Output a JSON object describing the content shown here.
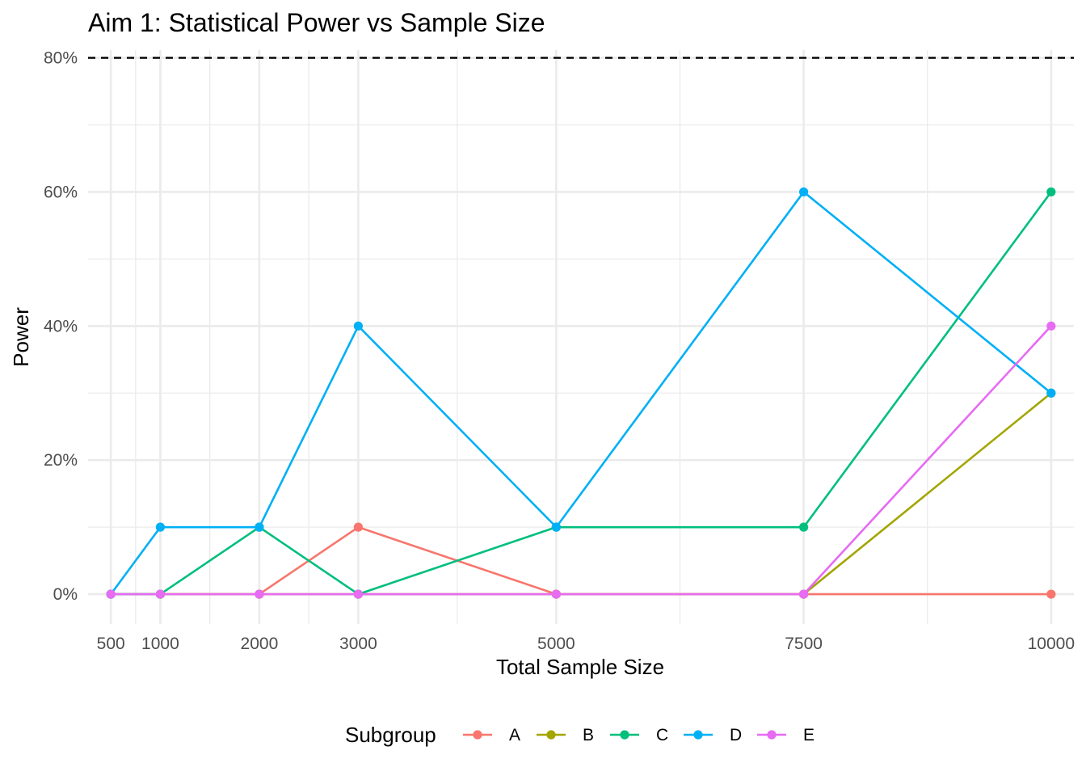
{
  "chart_data": {
    "type": "line",
    "title": "Aim 1: Statistical Power vs Sample Size",
    "xlabel": "Total Sample Size",
    "ylabel": "Power",
    "x": [
      500,
      1000,
      2000,
      3000,
      5000,
      7500,
      10000
    ],
    "x_tick_labels": [
      "500",
      "1000",
      "2000",
      "3000",
      "5000",
      "7500",
      "10000"
    ],
    "xlim": [
      270,
      10230
    ],
    "ylim": [
      -0.0445,
      0.8115
    ],
    "y_ticks": [
      0,
      0.2,
      0.4,
      0.6,
      0.8
    ],
    "y_tick_labels": [
      "0%",
      "20%",
      "40%",
      "60%",
      "80%"
    ],
    "reference_line": {
      "y": 0.8,
      "style": "dashed",
      "color": "#000000"
    },
    "grid": true,
    "legend": {
      "title": "Subgroup",
      "position": "bottom"
    },
    "series": [
      {
        "name": "A",
        "color": "#F8766D",
        "values": [
          0,
          0,
          0,
          0.1,
          0,
          0,
          0
        ]
      },
      {
        "name": "B",
        "color": "#A3A500",
        "values": [
          0,
          0,
          0,
          0,
          0,
          0,
          0.3
        ]
      },
      {
        "name": "C",
        "color": "#00BF7D",
        "values": [
          0,
          0,
          0.1,
          0,
          0.1,
          0.1,
          0.6
        ]
      },
      {
        "name": "D",
        "color": "#00B0F6",
        "values": [
          0,
          0.1,
          0.1,
          0.4,
          0.1,
          0.6,
          0.3
        ]
      },
      {
        "name": "E",
        "color": "#E76BF3",
        "values": [
          0,
          0,
          0,
          0,
          0,
          0,
          0.4
        ]
      }
    ]
  }
}
